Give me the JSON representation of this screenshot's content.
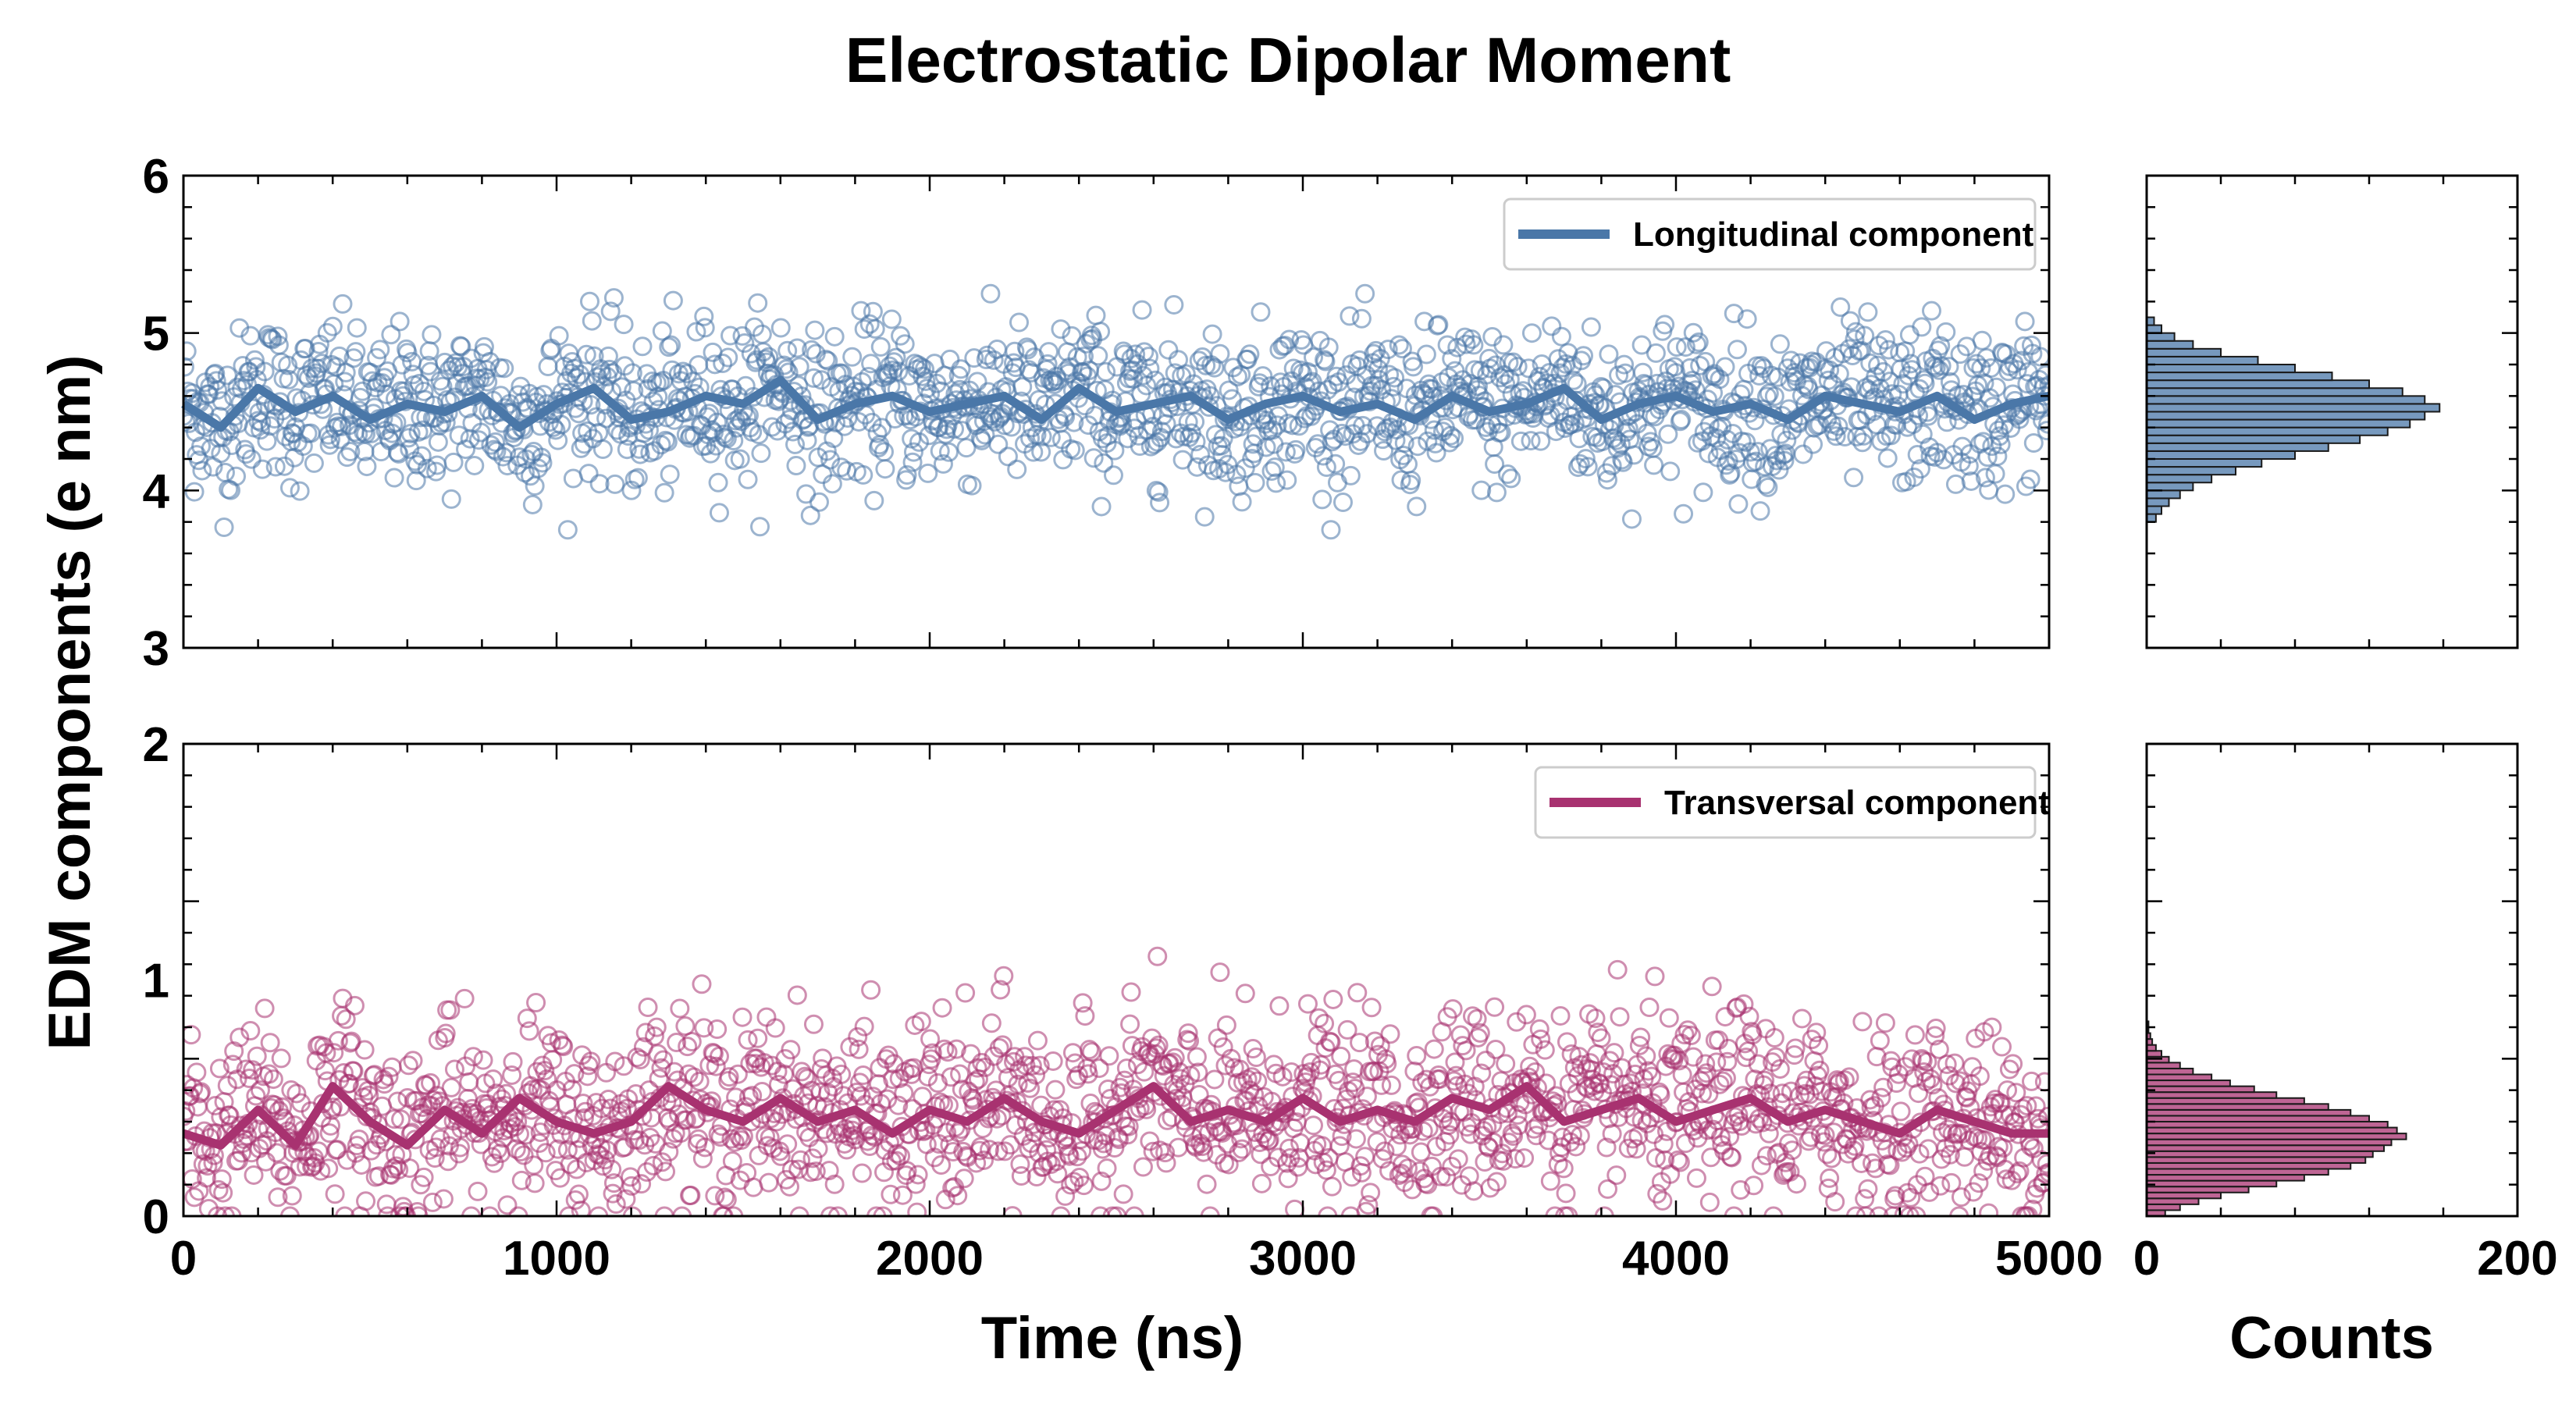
{
  "chart_data": [
    {
      "type": "scatter",
      "panel": "top-time-series",
      "title": "Electrostatic Dipolar Moment",
      "xlabel": "Time (ns)",
      "ylabel": "EDM components (e nm)",
      "xlim": [
        0,
        5000
      ],
      "ylim": [
        3,
        6
      ],
      "xticks": [
        0,
        1000,
        2000,
        3000,
        4000,
        5000
      ],
      "yticks": [
        3,
        4,
        5,
        6
      ],
      "legend": "top-right",
      "series": [
        {
          "name": "Longitudinal component",
          "color": "#4a77a8",
          "marker": "open-circle",
          "line": "running-average",
          "points": [
            [
              0,
              4.55
            ],
            [
              100,
              4.4
            ],
            [
              200,
              4.65
            ],
            [
              300,
              4.5
            ],
            [
              400,
              4.6
            ],
            [
              500,
              4.45
            ],
            [
              600,
              4.55
            ],
            [
              700,
              4.5
            ],
            [
              800,
              4.6
            ],
            [
              900,
              4.4
            ],
            [
              1000,
              4.55
            ],
            [
              1100,
              4.65
            ],
            [
              1200,
              4.45
            ],
            [
              1300,
              4.5
            ],
            [
              1400,
              4.6
            ],
            [
              1500,
              4.55
            ],
            [
              1600,
              4.7
            ],
            [
              1700,
              4.45
            ],
            [
              1800,
              4.55
            ],
            [
              1900,
              4.6
            ],
            [
              2000,
              4.5
            ],
            [
              2100,
              4.55
            ],
            [
              2200,
              4.6
            ],
            [
              2300,
              4.45
            ],
            [
              2400,
              4.65
            ],
            [
              2500,
              4.5
            ],
            [
              2600,
              4.55
            ],
            [
              2700,
              4.6
            ],
            [
              2800,
              4.45
            ],
            [
              2900,
              4.55
            ],
            [
              3000,
              4.6
            ],
            [
              3100,
              4.5
            ],
            [
              3200,
              4.55
            ],
            [
              3300,
              4.45
            ],
            [
              3400,
              4.6
            ],
            [
              3500,
              4.5
            ],
            [
              3600,
              4.55
            ],
            [
              3700,
              4.65
            ],
            [
              3800,
              4.45
            ],
            [
              3900,
              4.55
            ],
            [
              4000,
              4.6
            ],
            [
              4100,
              4.5
            ],
            [
              4200,
              4.55
            ],
            [
              4300,
              4.45
            ],
            [
              4400,
              4.6
            ],
            [
              4500,
              4.55
            ],
            [
              4600,
              4.5
            ],
            [
              4700,
              4.6
            ],
            [
              4800,
              4.45
            ],
            [
              4900,
              4.55
            ],
            [
              5000,
              4.6
            ]
          ]
        }
      ],
      "summary": {
        "mean": 4.55,
        "min": 3.75,
        "max": 5.25
      }
    },
    {
      "type": "bar",
      "panel": "top-histogram",
      "orientation": "horizontal",
      "xlabel": "",
      "xlim": [
        0,
        200
      ],
      "ylim": [
        3,
        6
      ],
      "color": "#4a77a8",
      "bin_edges_start": 3.8,
      "bin_width": 0.05,
      "counts": [
        5,
        8,
        12,
        18,
        25,
        35,
        48,
        62,
        80,
        98,
        115,
        130,
        142,
        150,
        158,
        150,
        138,
        120,
        100,
        80,
        60,
        40,
        25,
        15,
        8,
        4
      ]
    },
    {
      "type": "scatter",
      "panel": "bottom-time-series",
      "xlabel": "Time (ns)",
      "xlim": [
        0,
        5000
      ],
      "ylim": [
        0,
        2
      ],
      "xticks": [
        0,
        1000,
        2000,
        3000,
        4000,
        5000
      ],
      "yticks": [
        0,
        1,
        2
      ],
      "legend": "top-right",
      "series": [
        {
          "name": "Transversal component",
          "color": "#a83270",
          "marker": "open-circle",
          "line": "running-average",
          "points": [
            [
              0,
              0.35
            ],
            [
              100,
              0.3
            ],
            [
              200,
              0.45
            ],
            [
              300,
              0.3
            ],
            [
              400,
              0.55
            ],
            [
              500,
              0.4
            ],
            [
              600,
              0.3
            ],
            [
              700,
              0.45
            ],
            [
              800,
              0.35
            ],
            [
              900,
              0.5
            ],
            [
              1000,
              0.4
            ],
            [
              1100,
              0.35
            ],
            [
              1200,
              0.4
            ],
            [
              1300,
              0.55
            ],
            [
              1400,
              0.45
            ],
            [
              1500,
              0.4
            ],
            [
              1600,
              0.5
            ],
            [
              1700,
              0.4
            ],
            [
              1800,
              0.45
            ],
            [
              1900,
              0.35
            ],
            [
              2000,
              0.45
            ],
            [
              2100,
              0.4
            ],
            [
              2200,
              0.5
            ],
            [
              2300,
              0.4
            ],
            [
              2400,
              0.35
            ],
            [
              2500,
              0.45
            ],
            [
              2600,
              0.55
            ],
            [
              2700,
              0.4
            ],
            [
              2800,
              0.45
            ],
            [
              2900,
              0.4
            ],
            [
              3000,
              0.5
            ],
            [
              3100,
              0.4
            ],
            [
              3200,
              0.45
            ],
            [
              3300,
              0.4
            ],
            [
              3400,
              0.5
            ],
            [
              3500,
              0.45
            ],
            [
              3600,
              0.55
            ],
            [
              3700,
              0.4
            ],
            [
              3800,
              0.45
            ],
            [
              3900,
              0.5
            ],
            [
              4000,
              0.4
            ],
            [
              4100,
              0.45
            ],
            [
              4200,
              0.5
            ],
            [
              4300,
              0.4
            ],
            [
              4400,
              0.45
            ],
            [
              4500,
              0.4
            ],
            [
              4600,
              0.35
            ],
            [
              4700,
              0.45
            ],
            [
              4800,
              0.4
            ],
            [
              4900,
              0.35
            ],
            [
              5000,
              0.35
            ]
          ]
        }
      ],
      "summary": {
        "mean": 0.43,
        "min": 0.0,
        "max": 1.1
      }
    },
    {
      "type": "bar",
      "panel": "bottom-histogram",
      "orientation": "horizontal",
      "xlabel": "Counts",
      "xlim": [
        0,
        200
      ],
      "xticks": [
        0,
        200
      ],
      "ylim": [
        0,
        2
      ],
      "color": "#a83270",
      "bin_edges_start": 0.0,
      "bin_width": 0.025,
      "counts": [
        10,
        18,
        28,
        40,
        55,
        70,
        85,
        98,
        110,
        118,
        122,
        128,
        132,
        140,
        135,
        130,
        120,
        110,
        98,
        85,
        70,
        58,
        45,
        35,
        25,
        18,
        12,
        8,
        5,
        3,
        2,
        1,
        1,
        0,
        0,
        0,
        0,
        0,
        0,
        0,
        0,
        0,
        0
      ]
    }
  ]
}
